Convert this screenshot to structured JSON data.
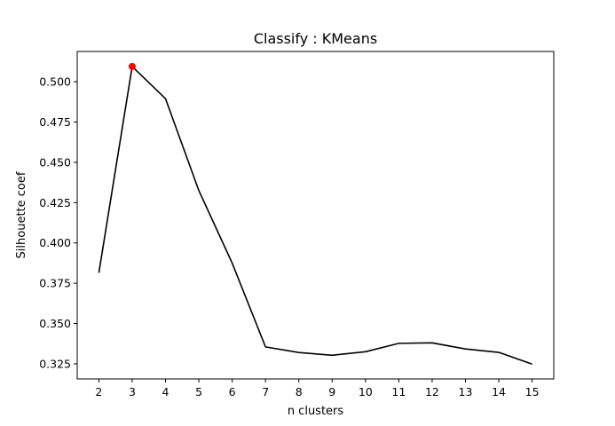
{
  "chart_data": {
    "type": "line",
    "title": "Classify : KMeans",
    "xlabel": "n clusters",
    "ylabel": "Silhouette coef",
    "x": [
      2,
      3,
      4,
      5,
      6,
      7,
      8,
      9,
      10,
      11,
      12,
      13,
      14,
      15
    ],
    "series": [
      {
        "values": [
          0.3815,
          0.5095,
          0.4895,
          0.4325,
          0.3875,
          0.3355,
          0.332,
          0.3303,
          0.3325,
          0.3377,
          0.338,
          0.3342,
          0.3321,
          0.3248
        ],
        "color": "#000000"
      }
    ],
    "highlight": {
      "x": 3,
      "y": 0.5095,
      "color": "#ff0000"
    },
    "xticks": [
      "2",
      "3",
      "4",
      "5",
      "6",
      "7",
      "8",
      "9",
      "10",
      "11",
      "12",
      "13",
      "14",
      "15"
    ],
    "yticks": [
      "0.325",
      "0.350",
      "0.375",
      "0.400",
      "0.425",
      "0.450",
      "0.475",
      "0.500"
    ],
    "ytick_values": [
      0.325,
      0.35,
      0.375,
      0.4,
      0.425,
      0.45,
      0.475,
      0.5
    ],
    "xlim": [
      1.35,
      15.65
    ],
    "ylim": [
      0.3156,
      0.5188
    ],
    "grid": false,
    "legend": "none"
  }
}
